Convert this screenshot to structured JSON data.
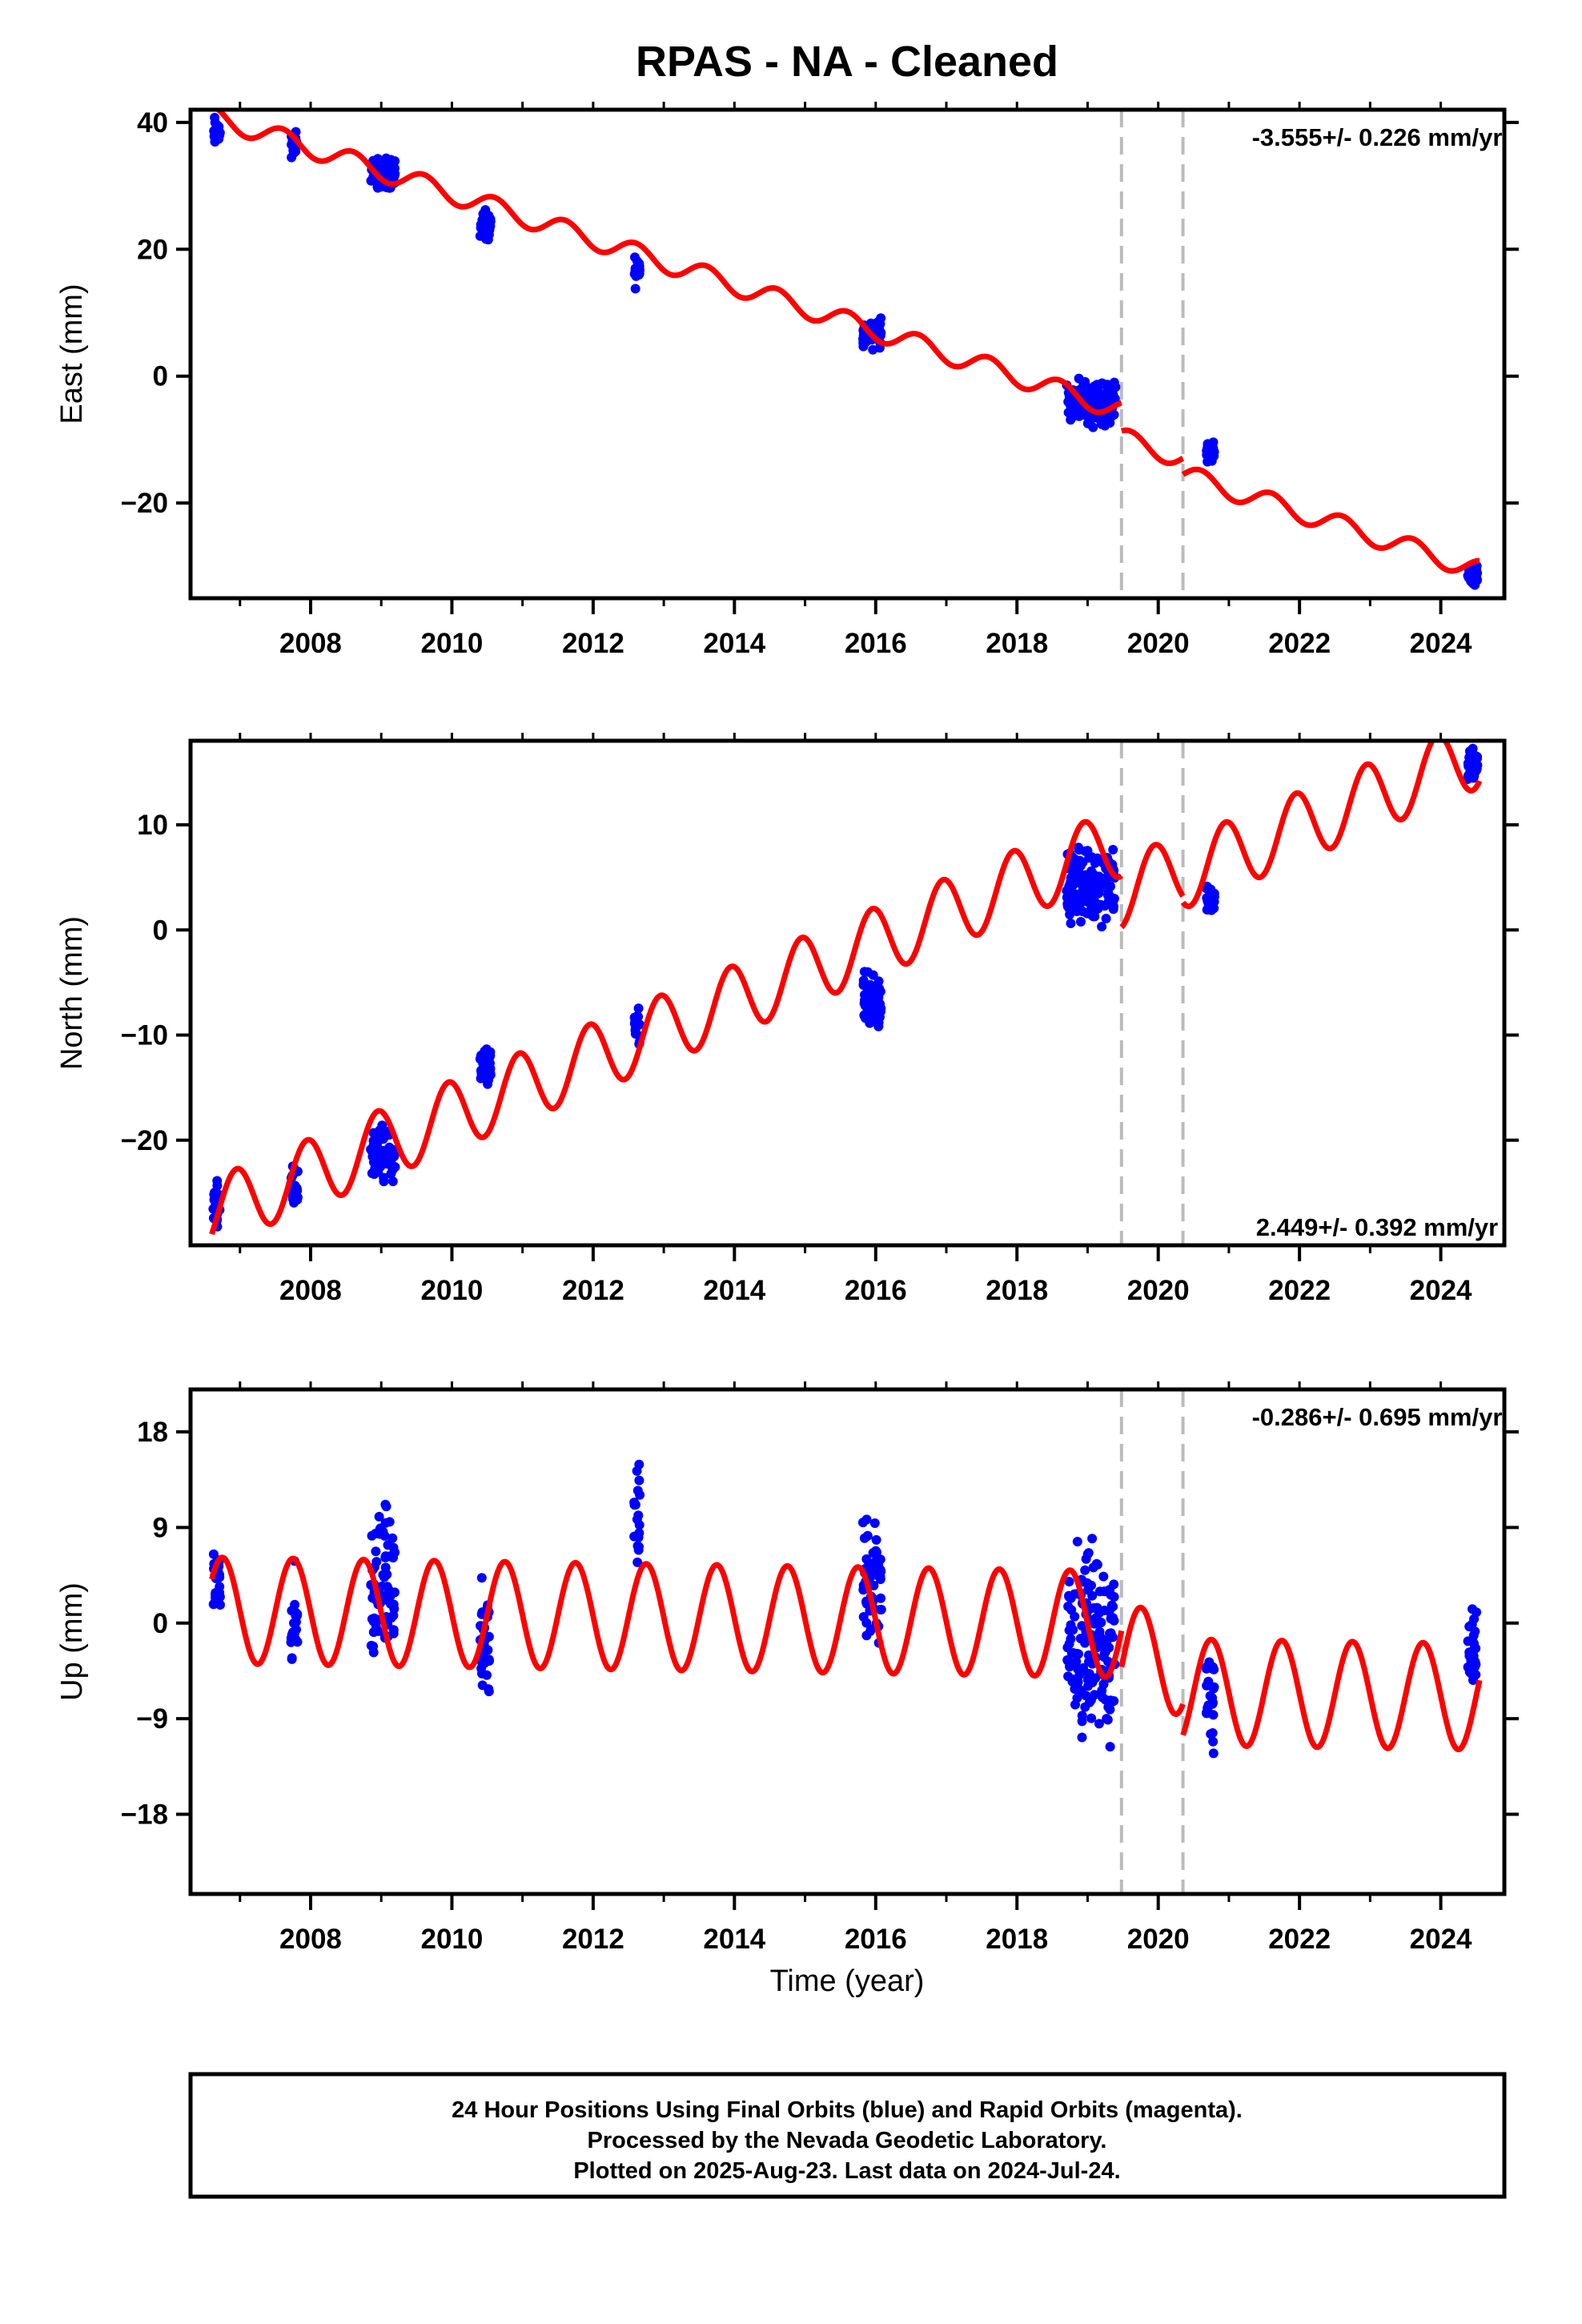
{
  "title": "RPAS  - NA - Cleaned",
  "xlabel": "Time (year)",
  "x_ticks": [
    "2008",
    "2010",
    "2012",
    "2014",
    "2016",
    "2018",
    "2020",
    "2022",
    "2024"
  ],
  "footer": [
    "24 Hour Positions Using Final Orbits (blue) and Rapid Orbits (magenta).",
    "Processed by the Nevada Geodetic Laboratory.",
    "Plotted on 2025-Aug-23. Last data on 2024-Jul-24."
  ],
  "colors": {
    "data": "#0000ff",
    "model": "#ff0000",
    "break_line": "#bbbbbb",
    "axes": "#000000"
  },
  "chart_data": [
    {
      "type": "scatter",
      "name": "east",
      "ylabel": "East (mm)",
      "rate_label": "-3.555+/- 0.226 mm/yr",
      "rate_position": "top-right",
      "xlim": [
        2006.3,
        2024.9
      ],
      "ylim": [
        -35,
        42
      ],
      "y_ticks": [
        40,
        20,
        0,
        -20
      ],
      "break_lines_x": [
        2019.48,
        2020.35
      ],
      "model": {
        "type": "line",
        "segments": [
          {
            "x0": 2006.6,
            "x1": 2019.48,
            "y_at_x0": 41,
            "slope": -3.6,
            "annual_amp": 1.6,
            "phase_year": 2006.6
          },
          {
            "x0": 2019.48,
            "x1": 2020.35,
            "y_at_x0": -9.8,
            "slope": -3.6,
            "annual_amp": 1.6,
            "phase_year": 2006.6
          },
          {
            "x0": 2020.35,
            "x1": 2024.55,
            "y_at_x0": -15.5,
            "slope": -3.6,
            "annual_amp": 1.6,
            "phase_year": 2006.6
          }
        ]
      },
      "observation_campaigns": [
        {
          "x_start": 2006.62,
          "x_end": 2006.72,
          "y_center": 38.5,
          "spread": 2.5
        },
        {
          "x_start": 2007.72,
          "x_end": 2007.82,
          "y_center": 36.5,
          "spread": 2.0
        },
        {
          "x_start": 2008.85,
          "x_end": 2009.2,
          "y_center": 32.0,
          "spread": 2.5
        },
        {
          "x_start": 2010.4,
          "x_end": 2010.55,
          "y_center": 23.5,
          "spread": 2.5
        },
        {
          "x_start": 2012.58,
          "x_end": 2012.66,
          "y_center": 16.5,
          "spread": 2.5
        },
        {
          "x_start": 2015.82,
          "x_end": 2016.08,
          "y_center": 7.0,
          "spread": 2.5
        },
        {
          "x_start": 2018.7,
          "x_end": 2019.4,
          "y_center": -4.0,
          "spread": 3.5
        },
        {
          "x_start": 2020.68,
          "x_end": 2020.8,
          "y_center": -12.0,
          "spread": 1.5
        },
        {
          "x_start": 2024.38,
          "x_end": 2024.52,
          "y_center": -31.0,
          "spread": 2.0
        }
      ]
    },
    {
      "type": "scatter",
      "name": "north",
      "ylabel": "North (mm)",
      "rate_label": "2.449+/- 0.392 mm/yr",
      "rate_position": "bottom-right",
      "xlim": [
        2006.3,
        2024.9
      ],
      "ylim": [
        -30,
        18
      ],
      "y_ticks": [
        10,
        0,
        -10,
        -20
      ],
      "break_lines_x": [
        2019.48,
        2020.35
      ],
      "model": {
        "type": "line",
        "segments": [
          {
            "x0": 2006.6,
            "x1": 2019.48,
            "y_at_x0": -27,
            "slope": 2.75,
            "annual_amp": 3.3,
            "phase_year": 2006.95
          },
          {
            "x0": 2019.48,
            "x1": 2020.35,
            "y_at_x0": 3.5,
            "slope": 2.75,
            "annual_amp": 3.3,
            "phase_year": 2006.95
          },
          {
            "x0": 2020.35,
            "x1": 2024.55,
            "y_at_x0": 5.3,
            "slope": 2.75,
            "annual_amp": 3.3,
            "phase_year": 2006.95
          }
        ]
      },
      "observation_campaigns": [
        {
          "x_start": 2006.62,
          "x_end": 2006.72,
          "y_center": -26.5,
          "spread": 2.5
        },
        {
          "x_start": 2007.72,
          "x_end": 2007.82,
          "y_center": -24.5,
          "spread": 2.0
        },
        {
          "x_start": 2008.85,
          "x_end": 2009.2,
          "y_center": -21.5,
          "spread": 2.5
        },
        {
          "x_start": 2010.4,
          "x_end": 2010.55,
          "y_center": -13.0,
          "spread": 2.0
        },
        {
          "x_start": 2012.58,
          "x_end": 2012.66,
          "y_center": -9.5,
          "spread": 2.0
        },
        {
          "x_start": 2015.82,
          "x_end": 2016.08,
          "y_center": -7.0,
          "spread": 3.0
        },
        {
          "x_start": 2018.7,
          "x_end": 2019.4,
          "y_center": 4.0,
          "spread": 4.0
        },
        {
          "x_start": 2020.68,
          "x_end": 2020.8,
          "y_center": 3.0,
          "spread": 1.5
        },
        {
          "x_start": 2024.38,
          "x_end": 2024.52,
          "y_center": 15.5,
          "spread": 1.5
        }
      ]
    },
    {
      "type": "scatter",
      "name": "up",
      "ylabel": "Up (mm)",
      "rate_label": "-0.286+/- 0.695 mm/yr",
      "rate_position": "top-right",
      "xlim": [
        2006.3,
        2024.9
      ],
      "ylim": [
        -25.5,
        22
      ],
      "y_ticks": [
        18,
        9,
        0,
        -9,
        -18
      ],
      "break_lines_x": [
        2019.48,
        2020.35
      ],
      "model": {
        "type": "line",
        "segments": [
          {
            "x0": 2006.6,
            "x1": 2019.48,
            "y_at_x0": 1.2,
            "slope": -0.1,
            "annual_amp": 5.0,
            "phase_year": 2006.75
          },
          {
            "x0": 2019.48,
            "x1": 2020.35,
            "y_at_x0": -3.5,
            "slope": -0.1,
            "annual_amp": 5.0,
            "phase_year": 2006.75
          },
          {
            "x0": 2020.35,
            "x1": 2024.55,
            "y_at_x0": -6.5,
            "slope": -0.1,
            "annual_amp": 5.0,
            "phase_year": 2006.75
          }
        ]
      },
      "observation_campaigns": [
        {
          "x_start": 2006.62,
          "x_end": 2006.72,
          "y_center": 4.0,
          "spread": 5.0
        },
        {
          "x_start": 2007.72,
          "x_end": 2007.82,
          "y_center": -1.0,
          "spread": 6.0
        },
        {
          "x_start": 2008.85,
          "x_end": 2009.2,
          "y_center": 4.0,
          "spread": 7.0
        },
        {
          "x_start": 2010.4,
          "x_end": 2010.55,
          "y_center": -1.5,
          "spread": 6.0
        },
        {
          "x_start": 2012.58,
          "x_end": 2012.66,
          "y_center": 10.0,
          "spread": 6.0
        },
        {
          "x_start": 2015.82,
          "x_end": 2016.08,
          "y_center": 5.0,
          "spread": 8.0
        },
        {
          "x_start": 2018.7,
          "x_end": 2019.4,
          "y_center": -2.0,
          "spread": 10.0
        },
        {
          "x_start": 2020.68,
          "x_end": 2020.8,
          "y_center": -7.0,
          "spread": 5.0
        },
        {
          "x_start": 2024.38,
          "x_end": 2024.52,
          "y_center": -3.0,
          "spread": 4.0
        }
      ]
    }
  ]
}
